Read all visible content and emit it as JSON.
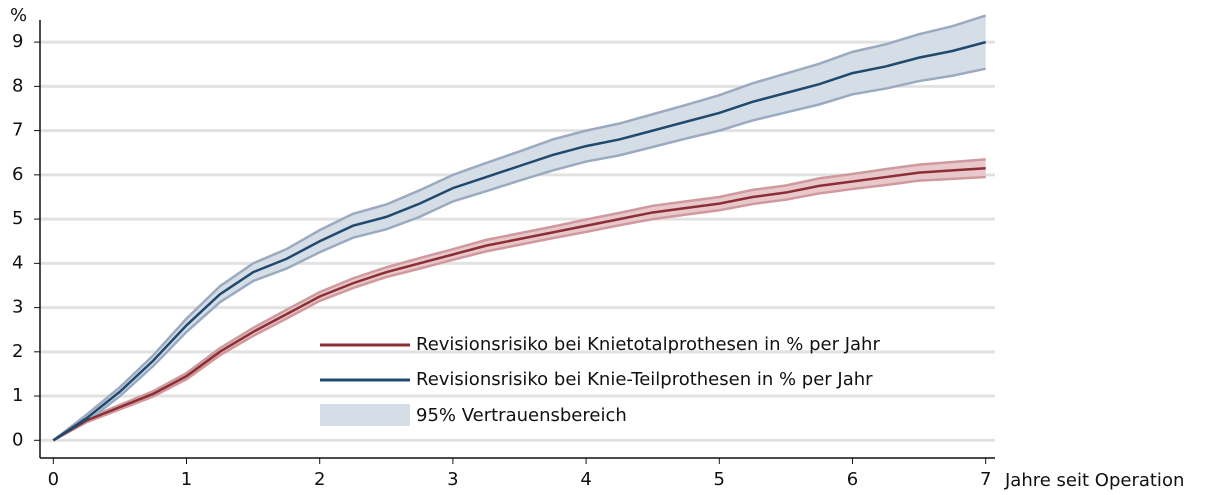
{
  "chart_data": {
    "type": "line",
    "y_axis_label": "%",
    "x_axis_label": "Jahre seit Operation",
    "xlim": [
      -0.1,
      7.07
    ],
    "ylim": [
      -0.4,
      9.5
    ],
    "xticks": [
      0,
      1,
      2,
      3,
      4,
      5,
      6,
      7
    ],
    "yticks": [
      0,
      1,
      2,
      3,
      4,
      5,
      6,
      7,
      8,
      9
    ],
    "grid": true,
    "band_label": "95% Vertrauensbereich",
    "band_color": "#d5dde6",
    "x": [
      0,
      0.25,
      0.5,
      0.75,
      1,
      1.25,
      1.5,
      1.75,
      2,
      2.25,
      2.5,
      2.75,
      3,
      3.25,
      3.5,
      3.75,
      4,
      4.25,
      4.5,
      4.75,
      5,
      5.25,
      5.5,
      5.75,
      6,
      6.25,
      6.5,
      6.75,
      7
    ],
    "series": [
      {
        "name": "Revisionsrisiko bei Knietotalprothesen in % per Jahr",
        "color": "#8b2f35",
        "band_fill": "#e8c8ca",
        "band_edge": "#cf9a9d",
        "values": [
          0,
          0.45,
          0.75,
          1.05,
          1.45,
          2.0,
          2.45,
          2.85,
          3.25,
          3.55,
          3.8,
          4.0,
          4.2,
          4.4,
          4.55,
          4.7,
          4.85,
          5.0,
          5.15,
          5.25,
          5.35,
          5.5,
          5.6,
          5.75,
          5.85,
          5.95,
          6.05,
          6.1,
          6.15
        ],
        "lower": [
          0,
          0.41,
          0.7,
          0.99,
          1.38,
          1.92,
          2.36,
          2.75,
          3.15,
          3.44,
          3.69,
          3.88,
          4.08,
          4.27,
          4.42,
          4.57,
          4.71,
          4.86,
          5.0,
          5.1,
          5.2,
          5.34,
          5.44,
          5.58,
          5.68,
          5.77,
          5.87,
          5.91,
          5.95
        ],
        "upper": [
          0,
          0.49,
          0.8,
          1.11,
          1.52,
          2.08,
          2.54,
          2.95,
          3.35,
          3.66,
          3.91,
          4.12,
          4.32,
          4.53,
          4.68,
          4.83,
          4.99,
          5.14,
          5.3,
          5.4,
          5.5,
          5.66,
          5.76,
          5.92,
          6.02,
          6.13,
          6.23,
          6.29,
          6.35
        ]
      },
      {
        "name": "Revisionsrisiko bei Knie-Teilprothesen in % per Jahr",
        "color": "#1f4a6e",
        "band_fill": "#d5dde6",
        "band_edge": "#9aaac0",
        "values": [
          0,
          0.5,
          1.1,
          1.8,
          2.6,
          3.3,
          3.8,
          4.1,
          4.5,
          4.85,
          5.05,
          5.35,
          5.7,
          5.95,
          6.2,
          6.45,
          6.65,
          6.8,
          7.0,
          7.2,
          7.4,
          7.65,
          7.85,
          8.05,
          8.3,
          8.45,
          8.65,
          8.8,
          9.0
        ],
        "lower": [
          0,
          0.42,
          1.0,
          1.68,
          2.45,
          3.12,
          3.6,
          3.88,
          4.25,
          4.58,
          4.77,
          5.05,
          5.4,
          5.63,
          5.87,
          6.1,
          6.3,
          6.44,
          6.63,
          6.82,
          7.0,
          7.23,
          7.41,
          7.59,
          7.82,
          7.95,
          8.12,
          8.24,
          8.4
        ],
        "upper": [
          0,
          0.58,
          1.2,
          1.92,
          2.75,
          3.48,
          4.0,
          4.32,
          4.75,
          5.12,
          5.33,
          5.65,
          6.0,
          6.27,
          6.53,
          6.8,
          7.0,
          7.16,
          7.37,
          7.58,
          7.8,
          8.07,
          8.29,
          8.51,
          8.78,
          8.95,
          9.18,
          9.36,
          9.6
        ]
      }
    ]
  }
}
